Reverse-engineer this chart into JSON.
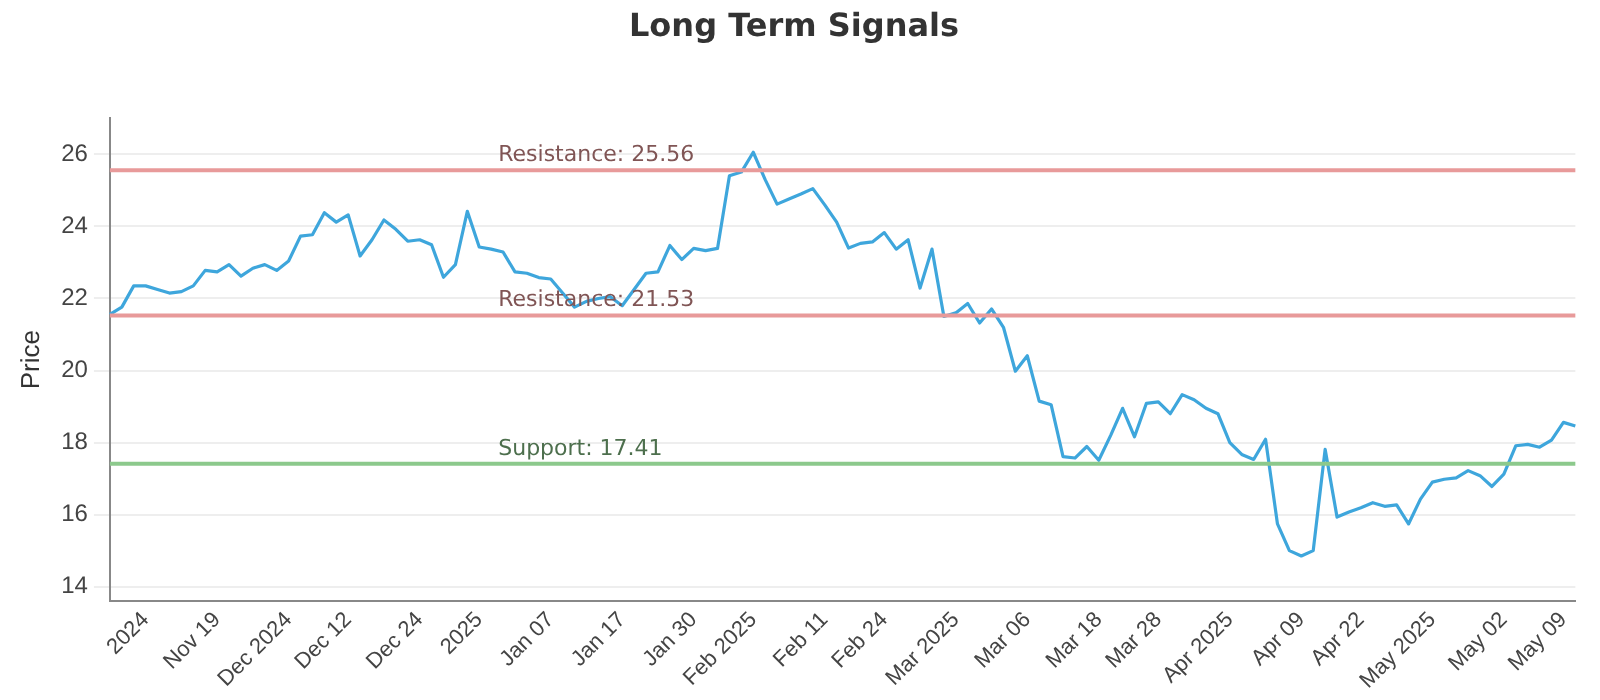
{
  "chart_data": {
    "type": "line",
    "title": "Long Term Signals",
    "ylabel": "Price",
    "categories": [
      null,
      null,
      null,
      "2024",
      null,
      null,
      null,
      null,
      null,
      "Nov 19",
      null,
      null,
      null,
      null,
      null,
      "Dec 2024",
      null,
      null,
      null,
      null,
      "Dec 12",
      null,
      null,
      null,
      null,
      null,
      "Dec 24",
      null,
      null,
      null,
      null,
      "2025",
      null,
      null,
      null,
      null,
      null,
      "Jan 07",
      null,
      null,
      null,
      null,
      null,
      "Jan 17",
      null,
      null,
      null,
      null,
      null,
      "Jan 30",
      null,
      null,
      null,
      null,
      "Feb 2025",
      null,
      null,
      null,
      null,
      null,
      "Feb 11",
      null,
      null,
      null,
      null,
      "Feb 24",
      null,
      null,
      null,
      null,
      null,
      "Mar 2025",
      null,
      null,
      null,
      null,
      null,
      "Mar 06",
      null,
      null,
      null,
      null,
      null,
      "Mar 18",
      null,
      null,
      null,
      null,
      "Mar 28",
      null,
      null,
      null,
      null,
      null,
      "Apr 2025",
      null,
      null,
      null,
      null,
      null,
      "Apr 09",
      null,
      null,
      null,
      null,
      "Apr 22",
      null,
      null,
      null,
      null,
      null,
      "May 2025",
      null,
      null,
      null,
      null,
      null,
      "May 02",
      null,
      null,
      null,
      null,
      "May 09",
      null
    ],
    "series": [
      {
        "color": "#3ea6dc",
        "values": [
          21.56,
          21.76,
          22.35,
          22.35,
          22.25,
          22.15,
          22.19,
          22.35,
          22.78,
          22.74,
          22.94,
          22.62,
          22.84,
          22.94,
          22.78,
          23.04,
          23.73,
          23.77,
          24.38,
          24.12,
          24.32,
          23.18,
          23.63,
          24.18,
          23.92,
          23.59,
          23.63,
          23.49,
          22.59,
          22.94,
          24.42,
          23.43,
          23.37,
          23.29,
          22.74,
          22.7,
          22.58,
          22.54,
          22.15,
          21.76,
          21.92,
          22.0,
          22.05,
          21.8,
          22.25,
          22.7,
          22.74,
          23.47,
          23.08,
          23.39,
          23.33,
          23.39,
          25.41,
          25.51,
          26.06,
          25.3,
          24.62,
          24.76,
          24.9,
          25.05,
          24.6,
          24.12,
          23.4,
          23.53,
          23.57,
          23.83,
          23.37,
          23.63,
          22.29,
          23.37,
          21.5,
          21.6,
          21.86,
          21.32,
          21.71,
          21.2,
          19.98,
          20.41,
          19.15,
          19.05,
          17.61,
          17.57,
          17.89,
          17.51,
          18.2,
          18.95,
          18.16,
          19.09,
          19.13,
          18.8,
          19.33,
          19.19,
          18.95,
          18.8,
          18.0,
          17.67,
          17.53,
          18.09,
          15.74,
          15.0,
          14.85,
          15.0,
          17.81,
          15.93,
          16.07,
          16.19,
          16.33,
          16.23,
          16.27,
          15.74,
          16.43,
          16.9,
          16.98,
          17.02,
          17.22,
          17.08,
          16.78,
          17.12,
          17.91,
          17.95,
          17.87,
          18.07,
          18.56,
          18.46
        ]
      }
    ],
    "ylim": [
      13.6,
      27
    ],
    "yticks": [
      14,
      16,
      18,
      20,
      22,
      24,
      26
    ],
    "grid": "y",
    "legend": false,
    "marker": "none",
    "line_style": "solid",
    "ref_lines": [
      {
        "axis": "y",
        "value": 25.56,
        "label": "Resistance: 25.56",
        "color": "#e89a9a"
      },
      {
        "axis": "y",
        "value": 21.53,
        "label": "Resistance: 21.53",
        "color": "#e89a9a"
      },
      {
        "axis": "y",
        "value": 17.41,
        "label": "Support: 17.41",
        "color": "#8cc98c"
      }
    ]
  }
}
